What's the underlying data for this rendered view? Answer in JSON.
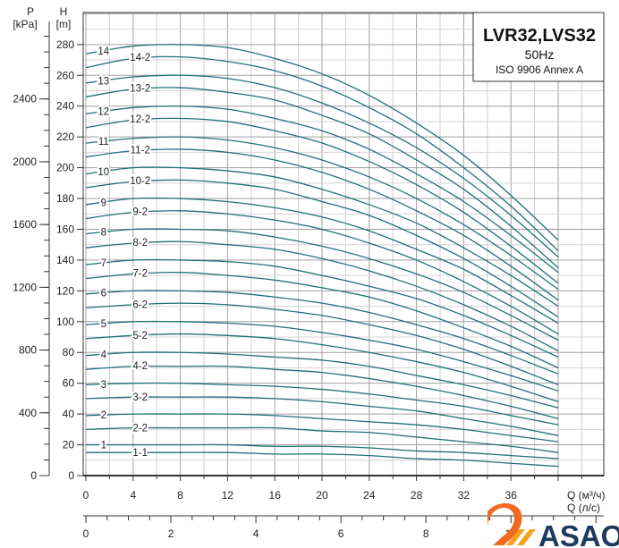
{
  "chart_data": {
    "type": "line",
    "title": "LVR32,LVS32",
    "subtitle": "50Hz",
    "standard": "ISO 9906 Annex A",
    "xlabel": "Q (м³/ч)",
    "x2label": "Q (л/с)",
    "ylabel": "H",
    "yunit": "[m]",
    "y2label": "P",
    "y2unit": "[kPa]",
    "xlim": [
      0,
      44
    ],
    "ylim": [
      0,
      300
    ],
    "grid": true,
    "x_ticks": [
      "0",
      "4",
      "8",
      "12",
      "16",
      "20",
      "24",
      "28",
      "32",
      "36"
    ],
    "x2_ticks": [
      "0",
      "2",
      "4",
      "6",
      "8",
      "10",
      "12"
    ],
    "y_ticks": [
      "0",
      "20",
      "40",
      "60",
      "80",
      "100",
      "120",
      "140",
      "160",
      "180",
      "200",
      "220",
      "240",
      "260",
      "280"
    ],
    "y2_ticks": [
      "0",
      "400",
      "800",
      "1200",
      "1600",
      "2000",
      "2400"
    ],
    "x": [
      0,
      4,
      8,
      12,
      16,
      20,
      24,
      28,
      32,
      36,
      40
    ],
    "series": [
      {
        "name": "1",
        "values": [
          20,
          20,
          20,
          20,
          19,
          19,
          18,
          16,
          15,
          13,
          11
        ]
      },
      {
        "name": "1-1",
        "values": [
          15,
          15,
          15,
          15,
          14,
          14,
          13,
          11,
          10,
          8,
          6
        ]
      },
      {
        "name": "2",
        "values": [
          39,
          40,
          40,
          40,
          39,
          37,
          35,
          33,
          30,
          26,
          22
        ]
      },
      {
        "name": "2-2",
        "values": [
          30,
          31,
          31,
          31,
          31,
          29,
          28,
          25,
          22,
          19,
          15
        ]
      },
      {
        "name": "3",
        "values": [
          59,
          60,
          60,
          59,
          58,
          56,
          53,
          49,
          45,
          39,
          33
        ]
      },
      {
        "name": "3-2",
        "values": [
          50,
          51,
          51,
          51,
          50,
          48,
          45,
          42,
          37,
          32,
          26
        ]
      },
      {
        "name": "4",
        "values": [
          78,
          80,
          80,
          79,
          77,
          75,
          71,
          65,
          59,
          52,
          44
        ]
      },
      {
        "name": "4-2",
        "values": [
          69,
          71,
          71,
          71,
          69,
          67,
          63,
          58,
          52,
          45,
          37
        ]
      },
      {
        "name": "5",
        "values": [
          98,
          100,
          100,
          99,
          97,
          93,
          88,
          82,
          74,
          65,
          55
        ]
      },
      {
        "name": "5-2",
        "values": [
          89,
          91,
          92,
          91,
          89,
          85,
          80,
          74,
          67,
          58,
          48
        ]
      },
      {
        "name": "6",
        "values": [
          118,
          120,
          120,
          119,
          116,
          112,
          106,
          98,
          89,
          78,
          66
        ]
      },
      {
        "name": "6-2",
        "values": [
          109,
          111,
          112,
          111,
          108,
          104,
          98,
          91,
          82,
          71,
          59
        ]
      },
      {
        "name": "7",
        "values": [
          137,
          140,
          140,
          139,
          136,
          130,
          123,
          115,
          104,
          91,
          77
        ]
      },
      {
        "name": "7-2",
        "values": [
          128,
          131,
          132,
          130,
          127,
          122,
          116,
          107,
          96,
          84,
          70
        ]
      },
      {
        "name": "8",
        "values": [
          157,
          160,
          160,
          159,
          155,
          149,
          141,
          131,
          119,
          104,
          88
        ]
      },
      {
        "name": "8-2",
        "values": [
          148,
          151,
          152,
          150,
          147,
          141,
          133,
          123,
          111,
          97,
          81
        ]
      },
      {
        "name": "9",
        "values": [
          176,
          180,
          180,
          178,
          174,
          168,
          159,
          147,
          134,
          117,
          99
        ]
      },
      {
        "name": "9-2",
        "values": [
          167,
          171,
          172,
          170,
          166,
          160,
          151,
          140,
          126,
          110,
          92
        ]
      },
      {
        "name": "10",
        "values": [
          196,
          200,
          200,
          198,
          194,
          186,
          176,
          164,
          148,
          130,
          110
        ]
      },
      {
        "name": "10-2",
        "values": [
          187,
          191,
          192,
          190,
          186,
          178,
          169,
          156,
          141,
          123,
          103
        ]
      },
      {
        "name": "11",
        "values": [
          216,
          219,
          220,
          218,
          213,
          205,
          194,
          180,
          163,
          143,
          121
        ]
      },
      {
        "name": "11-2",
        "values": [
          207,
          211,
          212,
          210,
          205,
          197,
          186,
          172,
          156,
          136,
          114
        ]
      },
      {
        "name": "12",
        "values": [
          235,
          239,
          240,
          238,
          232,
          224,
          212,
          196,
          178,
          156,
          132
        ]
      },
      {
        "name": "12-2",
        "values": [
          226,
          231,
          232,
          230,
          224,
          216,
          204,
          189,
          171,
          149,
          125
        ]
      },
      {
        "name": "13",
        "values": [
          255,
          259,
          260,
          258,
          252,
          242,
          229,
          213,
          193,
          169,
          142
        ]
      },
      {
        "name": "13-2",
        "values": [
          246,
          251,
          252,
          249,
          244,
          234,
          222,
          205,
          186,
          162,
          135
        ]
      },
      {
        "name": "14",
        "values": [
          274,
          279,
          280,
          278,
          271,
          261,
          247,
          229,
          208,
          182,
          153
        ]
      },
      {
        "name": "14-2",
        "values": [
          265,
          271,
          272,
          269,
          263,
          253,
          239,
          222,
          200,
          175,
          146
        ]
      }
    ],
    "colors": {
      "curve": "#1f6f78",
      "grid": "#c8c8c8",
      "grid_major": "#9a9a9a",
      "axis": "#333333"
    }
  },
  "logo": {
    "text": "ASAO",
    "orange": "#f26a21",
    "navy": "#1e3a5c"
  }
}
